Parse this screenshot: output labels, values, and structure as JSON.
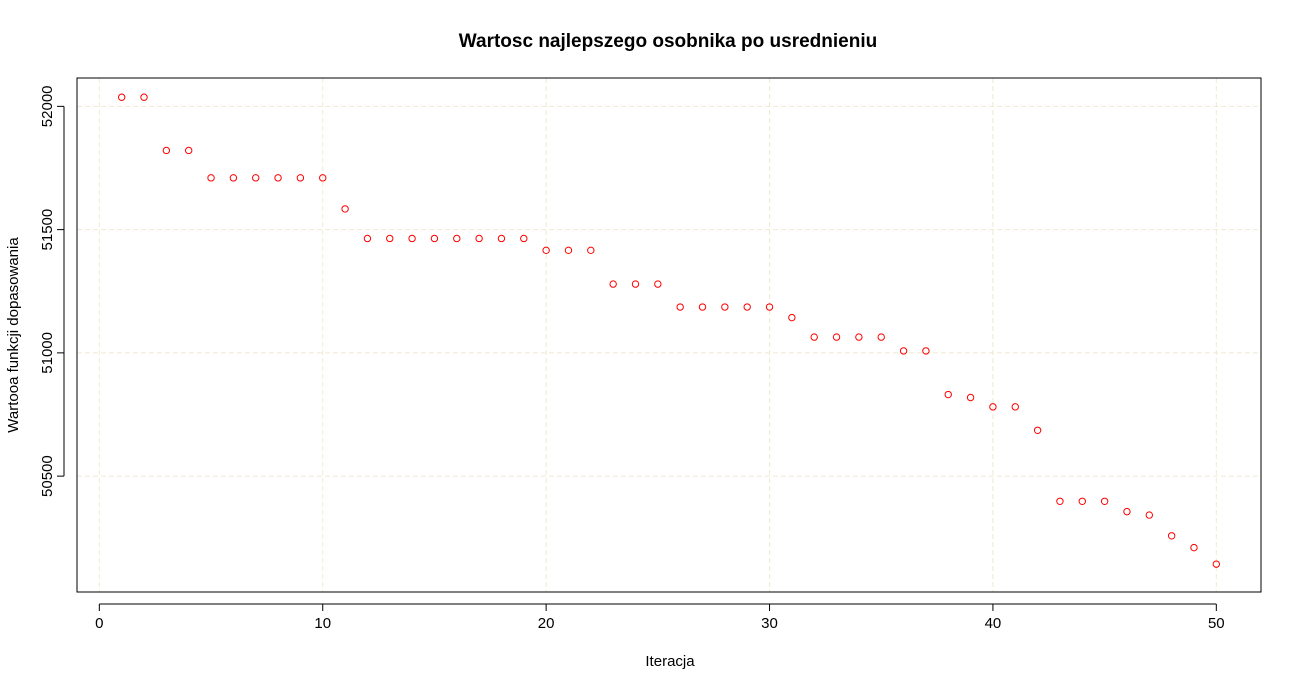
{
  "chart_data": {
    "type": "scatter",
    "title": "Wartosc najlepszego osobnika po usrednieniu",
    "xlabel": "Iteracja",
    "ylabel": "Wartooa funkcji dopasowania",
    "xlim": [
      -1,
      52
    ],
    "ylim": [
      50030,
      52115
    ],
    "x_ticks": [
      0,
      10,
      20,
      30,
      40,
      50
    ],
    "x_tick_labels": [
      "0",
      "10",
      "20",
      "30",
      "40",
      "50"
    ],
    "y_ticks": [
      50500,
      51000,
      51500,
      52000
    ],
    "y_tick_labels": [
      "50500",
      "51000",
      "51500",
      "52000"
    ],
    "grid": true,
    "grid_color": "#f0ead2",
    "marker_color": "#ff0000",
    "marker": "open-circle",
    "x": [
      1,
      2,
      3,
      4,
      5,
      6,
      7,
      8,
      9,
      10,
      11,
      12,
      13,
      14,
      15,
      16,
      17,
      18,
      19,
      20,
      21,
      22,
      23,
      24,
      25,
      26,
      27,
      28,
      29,
      30,
      31,
      32,
      33,
      34,
      35,
      36,
      37,
      38,
      39,
      40,
      41,
      42,
      43,
      44,
      45,
      46,
      47,
      48,
      49,
      50
    ],
    "y": [
      52037,
      52037,
      51821,
      51821,
      51710,
      51710,
      51710,
      51710,
      51710,
      51710,
      51584,
      51464,
      51464,
      51464,
      51464,
      51464,
      51464,
      51464,
      51464,
      51416,
      51416,
      51416,
      51279,
      51279,
      51279,
      51186,
      51186,
      51186,
      51186,
      51186,
      51143,
      51064,
      51064,
      51064,
      51064,
      51008,
      51008,
      50831,
      50819,
      50781,
      50781,
      50686,
      50398,
      50398,
      50398,
      50356,
      50342,
      50258,
      50210,
      50143
    ]
  }
}
